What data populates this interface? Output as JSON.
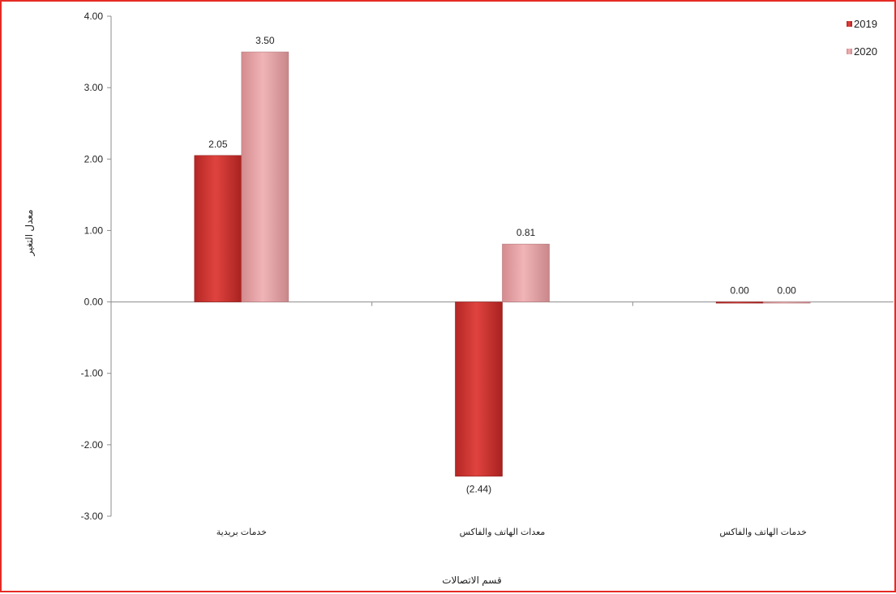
{
  "colors": {
    "frame": "#e52b25",
    "series_2019": "#c9302c",
    "series_2020": "#e8a3a6"
  },
  "chart_data": {
    "type": "bar",
    "categories": [
      "خدمات بريدية",
      "معدات الهاتف والفاكس",
      "خدمات الهاتف والفاكس"
    ],
    "series": [
      {
        "name": "2019",
        "values": [
          2.05,
          -2.44,
          0.0
        ],
        "labels": [
          "2.05",
          "(2.44)",
          "0.00"
        ]
      },
      {
        "name": "2020",
        "values": [
          3.5,
          0.81,
          0.0
        ],
        "labels": [
          "3.50",
          "0.81",
          "0.00"
        ]
      }
    ],
    "xlabel": "قسم الاتصالات",
    "ylabel": "معدل التغير",
    "ylim": [
      -3,
      4
    ],
    "yticks": [
      "4.00",
      "3.00",
      "2.00",
      "1.00",
      "0.00",
      "-1.00",
      "-2.00",
      "-3.00"
    ],
    "ytick_values": [
      4,
      3,
      2,
      1,
      0,
      -1,
      -2,
      -3
    ],
    "legend": "top-right",
    "grid": false
  }
}
